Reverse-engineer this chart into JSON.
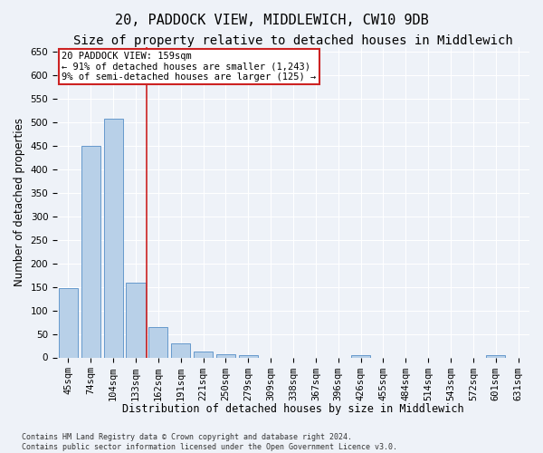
{
  "title": "20, PADDOCK VIEW, MIDDLEWICH, CW10 9DB",
  "subtitle": "Size of property relative to detached houses in Middlewich",
  "xlabel": "Distribution of detached houses by size in Middlewich",
  "ylabel": "Number of detached properties",
  "categories": [
    "45sqm",
    "74sqm",
    "104sqm",
    "133sqm",
    "162sqm",
    "191sqm",
    "221sqm",
    "250sqm",
    "279sqm",
    "309sqm",
    "338sqm",
    "367sqm",
    "396sqm",
    "426sqm",
    "455sqm",
    "484sqm",
    "514sqm",
    "543sqm",
    "572sqm",
    "601sqm",
    "631sqm"
  ],
  "values": [
    148,
    449,
    507,
    158,
    65,
    30,
    12,
    7,
    5,
    0,
    0,
    0,
    0,
    5,
    0,
    0,
    0,
    0,
    0,
    5,
    0
  ],
  "bar_color": "#b8d0e8",
  "bar_edge_color": "#6699cc",
  "vline_x_index": 3.5,
  "vline_color": "#cc2222",
  "annotation_line1": "20 PADDOCK VIEW: 159sqm",
  "annotation_line2": "← 91% of detached houses are smaller (1,243)",
  "annotation_line3": "9% of semi-detached houses are larger (125) →",
  "annotation_box_color": "#cc2222",
  "ylim": [
    0,
    660
  ],
  "yticks": [
    0,
    50,
    100,
    150,
    200,
    250,
    300,
    350,
    400,
    450,
    500,
    550,
    600,
    650
  ],
  "footer_line1": "Contains HM Land Registry data © Crown copyright and database right 2024.",
  "footer_line2": "Contains public sector information licensed under the Open Government Licence v3.0.",
  "bg_color": "#eef2f8",
  "grid_color": "#ffffff",
  "title_fontsize": 11,
  "subtitle_fontsize": 10,
  "axis_label_fontsize": 8.5,
  "tick_fontsize": 7.5,
  "footer_fontsize": 6
}
